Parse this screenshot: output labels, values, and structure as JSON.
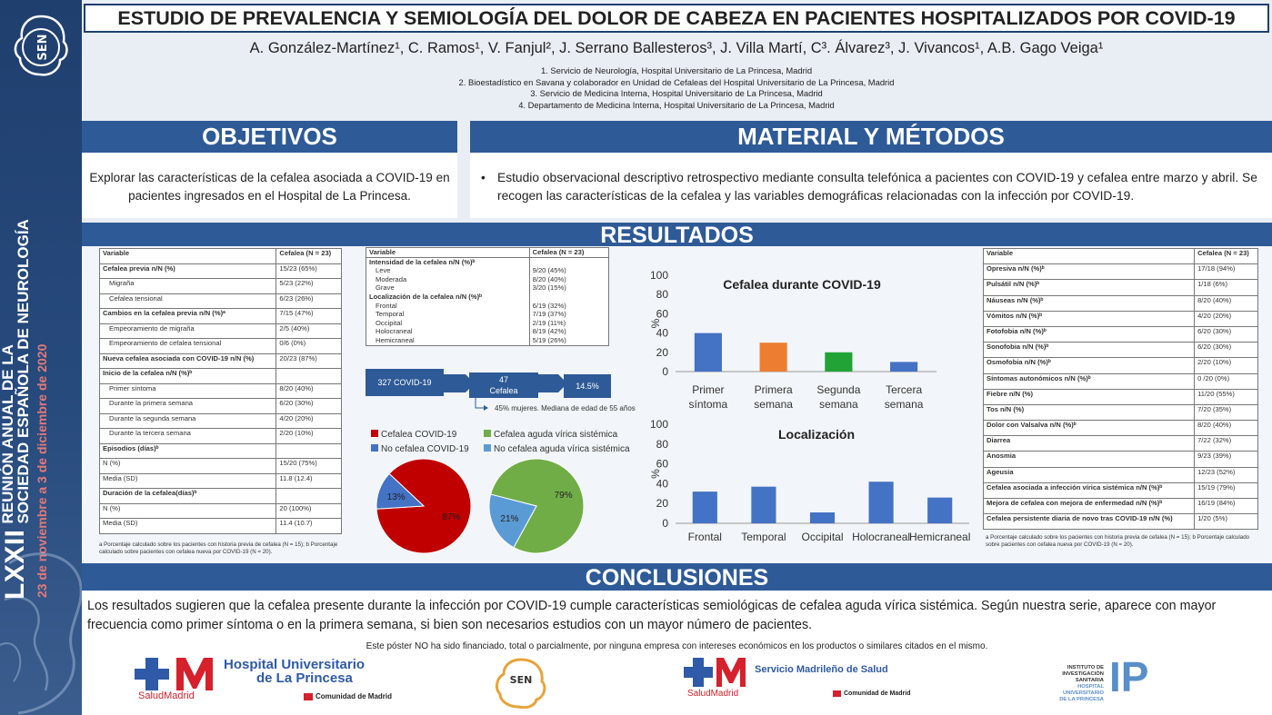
{
  "title": "ESTUDIO DE PREVALENCIA Y SEMIOLOGÍA DEL DOLOR DE CABEZA EN PACIENTES HOSPITALIZADOS POR COVID-19",
  "authors": "A.  González-Martínez¹, C. Ramos¹, V. Fanjul², J. Serrano Ballesteros³, J. Villa Martí, C³. Álvarez³, J. Vivancos¹, A.B. Gago Veiga¹",
  "affiliations": [
    "1.       Servicio de Neurología, Hospital Universitario de La Princesa, Madrid",
    "2.       Bioestadístico en Savana y colaborador en Unidad de Cefaleas del Hospital Universitario de La Princesa, Madrid",
    "3.       Servicio de Medicina Interna, Hospital Universitario de La Princesa, Madrid",
    "4.       Departamento de Medicina Interna, Hospital Universitario de La Princesa, Madrid"
  ],
  "sidebar": {
    "logo": "SEN",
    "line1": "LXXII",
    "line2": "REUNIÓN ANUAL DE LA",
    "line3": "SOCIEDAD ESPAÑOLA DE NEUROLOGÍA",
    "dates": "23 de noviembre a 3 de diciembre de 2020"
  },
  "sections": {
    "objetivos_title": "OBJETIVOS",
    "objetivos_text": "Explorar las características de la cefalea asociada a COVID-19 en pacientes ingresados en el Hospital de La Princesa.",
    "metodos_title": "MATERIAL Y MÉTODOS",
    "metodos_bullet": "•",
    "metodos_text": "Estudio observacional descriptivo retrospectivo mediante consulta telefónica a pacientes con COVID-19 y cefalea entre marzo y abril.  Se recogen las características de la cefalea y las variables demográficas  relacionadas con la infección por COVID-19.",
    "resultados_title": "RESULTADOS",
    "conclusiones_title": "CONCLUSIONES",
    "conclusiones_text": "Los resultados sugieren que la cefalea presente durante la infección por COVID-19 cumple características semiológicas de cefalea aguda vírica sistémica.  Según nuestra serie, aparece con mayor frecuencia como primer síntoma o en la primera semana, si bien son necesarios estudios con un mayor número de pacientes.",
    "funding": "Este póster NO ha sido financiado, total o parcialmente, por ninguna empresa con intereses económicos en los productos o similares citados en el mismo."
  },
  "table1": {
    "header": [
      "Variable",
      "Cefalea (N = 23)"
    ],
    "rows": [
      {
        "l": "Cefalea previa  n/N (%)",
        "v": "15/23 (65%)",
        "s": "b"
      },
      {
        "l": "Migraña",
        "v": "5/23 (22%)",
        "s": "i"
      },
      {
        "l": "Cefalea tensional",
        "v": "6/23 (26%)",
        "s": "i"
      },
      {
        "l": "Cambios en la cefalea previa  n/N (%)ᵃ",
        "v": "7/15 (47%)",
        "s": "b"
      },
      {
        "l": "Empeoramiento de migraña",
        "v": "2/5 (40%)",
        "s": "i"
      },
      {
        "l": "Empeoramiento de cefalea tensional",
        "v": "0/6 (0%)",
        "s": "i"
      },
      {
        "l": "Nueva cefalea asociada con COVID-19 n/N (%)",
        "v": "20/23 (87%)",
        "s": "b"
      },
      {
        "l": "Inicio de la cefalea  n/N (%)ᵇ",
        "v": "",
        "s": "b"
      },
      {
        "l": "Primer síntoma",
        "v": "8/20 (40%)",
        "s": "i"
      },
      {
        "l": "Durante la primera semana",
        "v": "6/20 (30%)",
        "s": "i"
      },
      {
        "l": "Durante la segunda semana",
        "v": "4/20 (20%)",
        "s": "i"
      },
      {
        "l": "Durante la tercera semana",
        "v": "2/20 (10%)",
        "s": "i"
      },
      {
        "l": "Episodios (días)ᵇ",
        "v": "",
        "s": "b"
      },
      {
        "l": "N (%)",
        "v": "15/20 (75%)",
        "s": "n"
      },
      {
        "l": "Media (SD)",
        "v": "11.8 (12.4)",
        "s": "n"
      },
      {
        "l": "Duración de la cefalea(días)ᵇ",
        "v": "",
        "s": "b"
      },
      {
        "l": "N (%)",
        "v": "20 (100%)",
        "s": "n"
      },
      {
        "l": "Media (SD)",
        "v": "11.4 (10.7)",
        "s": "n"
      }
    ],
    "note": "a Porcentaje calculado sobre los pacientes con historia previa de cefalea (N = 15); b Porcentaje calculado sobre pacientes con cefalea nueva por COVID-19 (N = 20)."
  },
  "table2": {
    "header": [
      "Variable",
      "Cefalea (N = 23)"
    ],
    "rows": [
      {
        "l": "Intensidad de la cefalea  n/N (%)ᵇ",
        "v": "",
        "s": "b"
      },
      {
        "l": "Leve",
        "v": "9/20 (45%)",
        "s": "i"
      },
      {
        "l": "Moderada",
        "v": "8/20 (40%)",
        "s": "i"
      },
      {
        "l": "Grave",
        "v": "3/20 (15%)",
        "s": "i"
      },
      {
        "l": "Localización de la cefalea  n/N (%)ᵇ",
        "v": "",
        "s": "b"
      },
      {
        "l": "Frontal",
        "v": "6/19 (32%)",
        "s": "i"
      },
      {
        "l": "Temporal",
        "v": "7/19 (37%)",
        "s": "i"
      },
      {
        "l": "Occipital",
        "v": "2/19 (11%)",
        "s": "i"
      },
      {
        "l": "Holocraneal",
        "v": "8/19 (42%)",
        "s": "i"
      },
      {
        "l": "Hemicraneal",
        "v": "5/19 (26%)",
        "s": "i"
      }
    ]
  },
  "table3": {
    "header": [
      "Variable",
      "Cefalea (N = 23)"
    ],
    "rows": [
      {
        "l": "Opresiva  n/N (%)ᵇ",
        "v": "17/18 (94%)"
      },
      {
        "l": "Pulsátil   n/N (%)ᵇ",
        "v": "1/18 (6%)"
      },
      {
        "l": "Náuseas   n/N (%)ᵇ",
        "v": "8/20 (40%)"
      },
      {
        "l": "Vómitos   n/N (%)ᵇ",
        "v": "4/20 (20%)"
      },
      {
        "l": "Fotofobia   n/N (%)ᵇ",
        "v": "6/20 (30%)"
      },
      {
        "l": "Sonofobia  n/N (%)ᵇ",
        "v": "6/20 (30%)"
      },
      {
        "l": "Osmofobia n/N (%)ᵇ",
        "v": "2/20 (10%)"
      },
      {
        "l": "Síntomas autonómicos  n/N (%)ᵇ",
        "v": "0 /20 (0%)"
      },
      {
        "l": "Fiebre   n/N (%)",
        "v": "11/20 (55%)"
      },
      {
        "l": "Tos   n/N (%)",
        "v": "7/20 (35%)"
      },
      {
        "l": "Dolor con Valsalva  n/N (%)ᵇ",
        "v": "8/20 (40%)"
      },
      {
        "l": "Diarrea",
        "v": "7/22 (32%)"
      },
      {
        "l": "Anosmia",
        "v": "9/23 (39%)"
      },
      {
        "l": "Ageusia",
        "v": "12/23 (52%)"
      },
      {
        "l": "Cefalea  asociada a infección vírica sistémica    n/N (%)ᵇ",
        "v": "15/19 (79%)"
      },
      {
        "l": "Mejora de cefalea con mejora de enfermedad  n/N (%)ᵇ",
        "v": "16/19 (84%)"
      },
      {
        "l": "Cefalea persistente diaria de novo tras COVID-19   n/N (%)",
        "v": "1/20 (5%)"
      }
    ],
    "note": "a Porcentaje calculado sobre los pacientes con historia previa de cefalea (N = 15); b Porcentaje calculado sobre pacientes con cefalea nueva por COVID-19 (N = 20)."
  },
  "flow": {
    "box1": "327 COVID-19",
    "box2a": "47",
    "box2b": "Cefalea",
    "box3": "14.5%",
    "note": "45% mujeres. Mediana de edad de 55 años"
  },
  "chart_data": [
    {
      "type": "bar",
      "title": "Cefalea durante COVID-19",
      "ylabel": "%",
      "ylim": [
        0,
        100
      ],
      "yticks": [
        0,
        20,
        40,
        60,
        80,
        100
      ],
      "categories": [
        [
          "Primer",
          "síntoma"
        ],
        [
          "Primera",
          "semana"
        ],
        [
          "Segunda",
          "semana"
        ],
        [
          "Tercera",
          "semana"
        ]
      ],
      "values": [
        40,
        30,
        20,
        10
      ],
      "colors": [
        "#4472c4",
        "#ed7d31",
        "#21a336",
        "#4472c4"
      ]
    },
    {
      "type": "bar",
      "title": "Localización",
      "ylabel": "%",
      "ylim": [
        0,
        100
      ],
      "yticks": [
        0,
        20,
        40,
        60,
        80,
        100
      ],
      "categories": [
        "Frontal",
        "Temporal",
        "Occipital",
        "Holocraneal",
        "Hemicraneal"
      ],
      "values": [
        32,
        37,
        11,
        42,
        26
      ],
      "colors": [
        "#4472c4",
        "#4472c4",
        "#4472c4",
        "#4472c4",
        "#4472c4"
      ]
    },
    {
      "type": "pie",
      "legend": [
        "Cefalea COVID-19",
        "No cefalea COVID-19"
      ],
      "values": [
        87,
        13
      ],
      "labels": [
        "87%",
        "13%"
      ],
      "colors": [
        "#c00000",
        "#4472c4"
      ]
    },
    {
      "type": "pie",
      "legend": [
        "Cefalea aguda vírica sistémica",
        "No cefalea aguda vírica sistémica"
      ],
      "values": [
        79,
        21
      ],
      "labels": [
        "79%",
        "21%"
      ],
      "colors": [
        "#70ad47",
        "#5b9bd5"
      ]
    }
  ],
  "logos": {
    "hosp_line1": "Hospital Universitario",
    "hosp_line2": "de La Princesa",
    "salud": "SaludMadrid",
    "comunidad": "Comunidad de Madrid",
    "sen": "SEN",
    "sermas": "Servicio Madrileño de Salud",
    "salud2": "SaludMadrid",
    "comunidad2": "Comunidad de Madrid",
    "iis1": "INSTITUTO DE",
    "iis2": "INVESTIGACIÓN",
    "iis3": "SANITARIA",
    "iis4": "HOSPITAL",
    "iis5": "UNIVERSITARIO",
    "iis6": "DE LA PRINCESA",
    "ip": "IP"
  },
  "colors": {
    "band": "#2e5a97",
    "sidebar": "#1f3f6e",
    "bar_blue": "#4472c4",
    "bar_orange": "#ed7d31",
    "bar_green": "#21a336",
    "red": "#c00000"
  }
}
